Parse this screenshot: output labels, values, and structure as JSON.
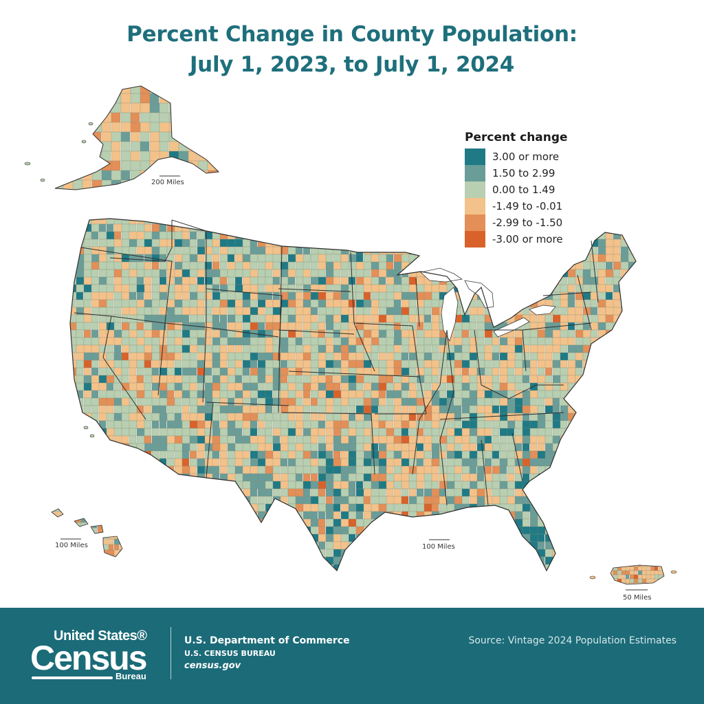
{
  "title": {
    "line1": "Percent Change in County Population:",
    "line2": "July 1, 2023, to July 1, 2024"
  },
  "legend": {
    "title": "Percent change",
    "items": [
      {
        "label": "3.00 or more",
        "color": "#1f7a85"
      },
      {
        "label": "1.50 to 2.99",
        "color": "#6a9d98"
      },
      {
        "label": "0.00 to 1.49",
        "color": "#b8cfb1"
      },
      {
        "label": "-1.49 to -0.01",
        "color": "#f3c28a"
      },
      {
        "label": "-2.99 to -1.50",
        "color": "#e38f57"
      },
      {
        "label": "-3.00 or more",
        "color": "#d9622b"
      }
    ]
  },
  "scales": {
    "alaska": "200 Miles",
    "hawaii": "100 Miles",
    "conus": "100 Miles",
    "puerto_rico": "50 Miles"
  },
  "footer": {
    "logo_top": "United States®",
    "logo_main": "Census",
    "logo_bottom": "Bureau",
    "dept_name": "U.S. Department of Commerce",
    "bureau_name": "U.S. CENSUS BUREAU",
    "website": "census.gov",
    "source": "Source: Vintage 2024 Population Estimates"
  },
  "colors": {
    "title": "#1e6f7c",
    "footer_bg": "#1b6b78",
    "border": "#3a3a3a"
  }
}
